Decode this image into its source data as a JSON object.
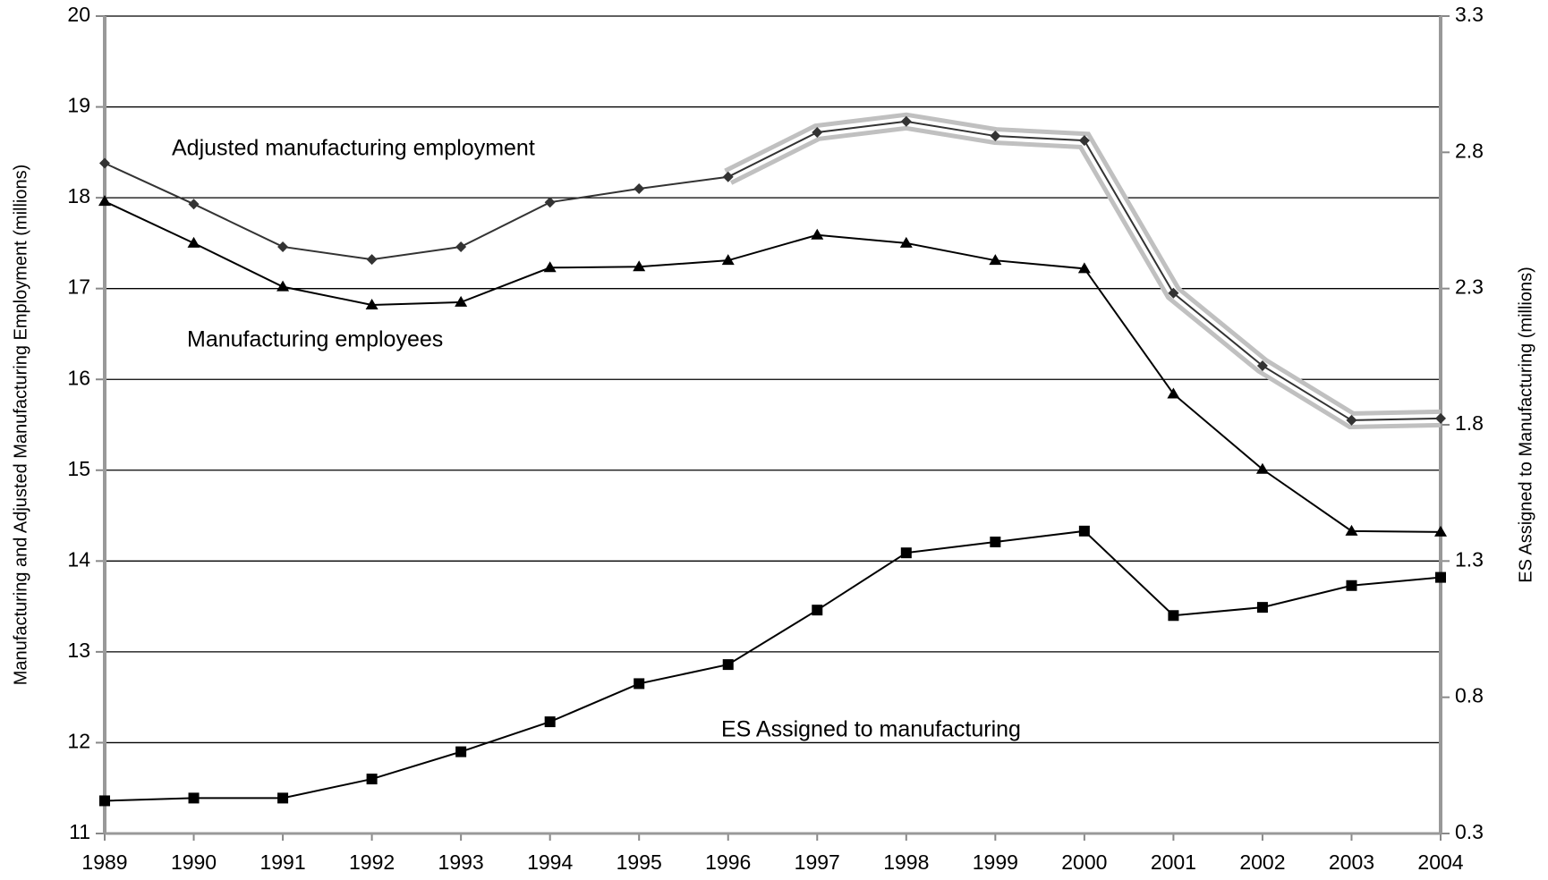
{
  "chart_data": {
    "type": "line",
    "x": [
      1989,
      1990,
      1991,
      1992,
      1993,
      1994,
      1995,
      1996,
      1997,
      1998,
      1999,
      2000,
      2001,
      2002,
      2003,
      2004
    ],
    "xlim": [
      1989,
      2004
    ],
    "xticks": [
      1989,
      1990,
      1991,
      1992,
      1993,
      1994,
      1995,
      1996,
      1997,
      1998,
      1999,
      2000,
      2001,
      2002,
      2003,
      2004
    ],
    "ylim": [
      11,
      20
    ],
    "yticks": [
      11,
      12,
      13,
      14,
      15,
      16,
      17,
      18,
      19,
      20
    ],
    "y2lim": [
      0.3,
      3.3
    ],
    "y2ticks": [
      0.3,
      0.8,
      1.3,
      1.8,
      2.3,
      2.8,
      3.3
    ],
    "ylabel": "Manufacturing and Adjusted Manufacturing Employment (millions)",
    "y2label": "ES Assigned to Manufacturing (millions)",
    "grid": true,
    "annotations": [
      "Adjusted manufacturing employment",
      "Manufacturing employees",
      "ES Assigned to manufacturing"
    ],
    "series": [
      {
        "name": "Adjusted manufacturing employment",
        "color": "#333333",
        "marker": "diamond",
        "highlight_from": 1996,
        "highlight_color": "#c0c0c0",
        "values": [
          18.38,
          17.93,
          17.46,
          17.32,
          17.46,
          17.95,
          18.1,
          18.23,
          18.72,
          18.84,
          18.68,
          18.63,
          16.95,
          16.15,
          15.55,
          15.57
        ]
      },
      {
        "name": "Manufacturing employees",
        "color": "#000000",
        "marker": "triangle",
        "values": [
          17.96,
          17.5,
          17.02,
          16.82,
          16.85,
          17.23,
          17.24,
          17.31,
          17.59,
          17.5,
          17.31,
          17.22,
          15.84,
          15.01,
          14.33,
          14.32
        ]
      },
      {
        "name": "ES Assigned to manufacturing",
        "color": "#000000",
        "marker": "square",
        "axis": "y2",
        "values": [
          0.42,
          0.43,
          0.43,
          0.5,
          0.6,
          0.71,
          0.85,
          0.92,
          1.12,
          1.33,
          1.37,
          1.41,
          1.1,
          1.13,
          1.21,
          1.24
        ]
      }
    ]
  }
}
